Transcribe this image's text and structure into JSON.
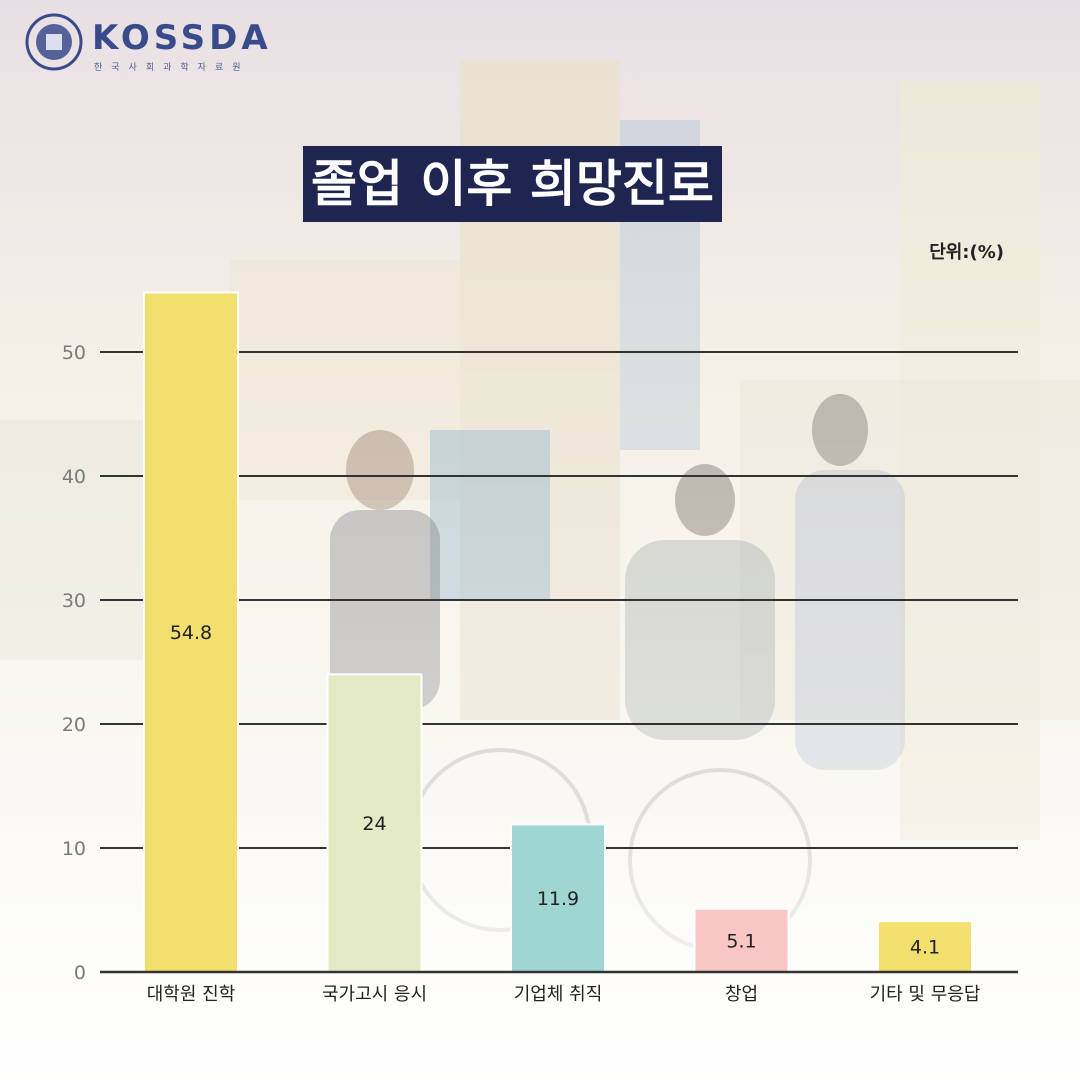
{
  "logo": {
    "text": "KOSSDA",
    "subtitle": "한국사회과학자료원"
  },
  "chart_data": {
    "type": "bar",
    "title": "졸업 이후 희망진로",
    "unit_label": "단위:(%)",
    "categories": [
      "대학원 진학",
      "국가고시 응시",
      "기업체 취직",
      "창업",
      "기타 및 무응답"
    ],
    "values": [
      54.8,
      24,
      11.9,
      5.1,
      4.1
    ],
    "bar_colors": [
      "#f2df6e",
      "#e4eac4",
      "#9fd6d2",
      "#f9c6c6",
      "#f2df6e"
    ],
    "ylim": [
      0,
      50
    ],
    "yticks": [
      0,
      10,
      20,
      30,
      40,
      50
    ],
    "grid": true
  }
}
